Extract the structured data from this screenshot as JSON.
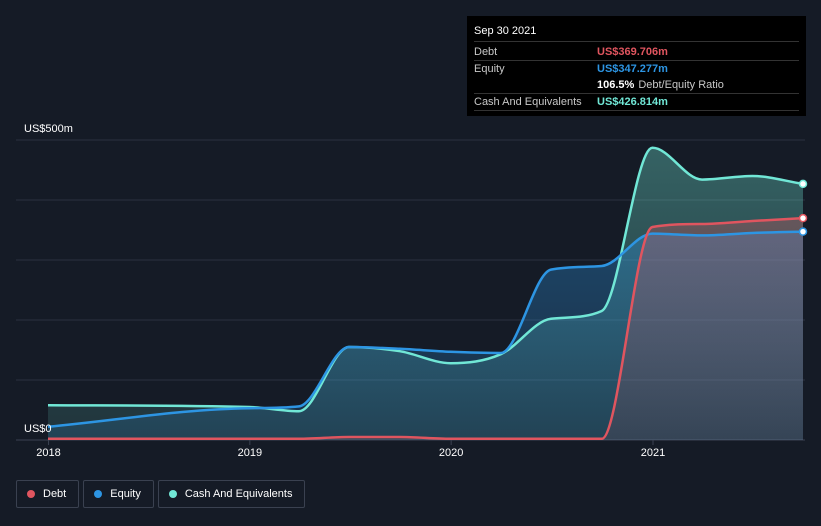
{
  "chart_data": {
    "type": "area",
    "y_unit_label_top": "US$500m",
    "y_unit_label_bottom": "US$0",
    "ylim": [
      0,
      500
    ],
    "x_range": [
      "2017-12-31",
      "2021-09-30"
    ],
    "x_ticks": [
      "2018",
      "2019",
      "2020",
      "2021"
    ],
    "colors": {
      "Debt": "#e0555f",
      "Equity": "#2d95e3",
      "Cash And Equivalents": "#71e7d6"
    },
    "series": [
      {
        "name": "Cash And Equivalents",
        "points": [
          [
            "2017-12-31",
            58
          ],
          [
            "2018-12-31",
            55
          ],
          [
            "2019-03-31",
            48
          ],
          [
            "2019-06-30",
            155
          ],
          [
            "2019-09-30",
            148
          ],
          [
            "2019-12-31",
            128
          ],
          [
            "2020-03-31",
            143
          ],
          [
            "2020-06-30",
            202
          ],
          [
            "2020-09-30",
            215
          ],
          [
            "2020-12-31",
            487
          ],
          [
            "2021-03-31",
            434
          ],
          [
            "2021-06-30",
            440
          ],
          [
            "2021-09-30",
            426.814
          ]
        ]
      },
      {
        "name": "Equity",
        "points": [
          [
            "2017-12-31",
            22
          ],
          [
            "2018-12-31",
            53
          ],
          [
            "2019-03-31",
            56
          ],
          [
            "2019-06-30",
            155
          ],
          [
            "2019-09-30",
            152
          ],
          [
            "2019-12-31",
            147
          ],
          [
            "2020-03-31",
            145
          ],
          [
            "2020-06-30",
            284
          ],
          [
            "2020-09-30",
            290
          ],
          [
            "2020-12-31",
            344
          ],
          [
            "2021-03-31",
            341
          ],
          [
            "2021-06-30",
            345
          ],
          [
            "2021-09-30",
            347.277
          ]
        ]
      },
      {
        "name": "Debt",
        "points": [
          [
            "2017-12-31",
            2
          ],
          [
            "2018-12-31",
            2
          ],
          [
            "2019-03-31",
            2
          ],
          [
            "2019-06-30",
            5
          ],
          [
            "2019-09-30",
            5
          ],
          [
            "2019-12-31",
            2
          ],
          [
            "2020-03-31",
            2
          ],
          [
            "2020-06-30",
            2
          ],
          [
            "2020-09-30",
            2
          ],
          [
            "2020-12-31",
            355
          ],
          [
            "2021-03-31",
            360
          ],
          [
            "2021-06-30",
            365
          ],
          [
            "2021-09-30",
            369.706
          ]
        ]
      }
    ]
  },
  "tooltip": {
    "date": "Sep 30 2021",
    "debt_label": "Debt",
    "debt_value": "US$369.706m",
    "equity_label": "Equity",
    "equity_value": "US$347.277m",
    "ratio_value": "106.5%",
    "ratio_label": "Debt/Equity Ratio",
    "cash_label": "Cash And Equivalents",
    "cash_value": "US$426.814m"
  },
  "legend": {
    "debt": "Debt",
    "equity": "Equity",
    "cash": "Cash And Equivalents"
  }
}
